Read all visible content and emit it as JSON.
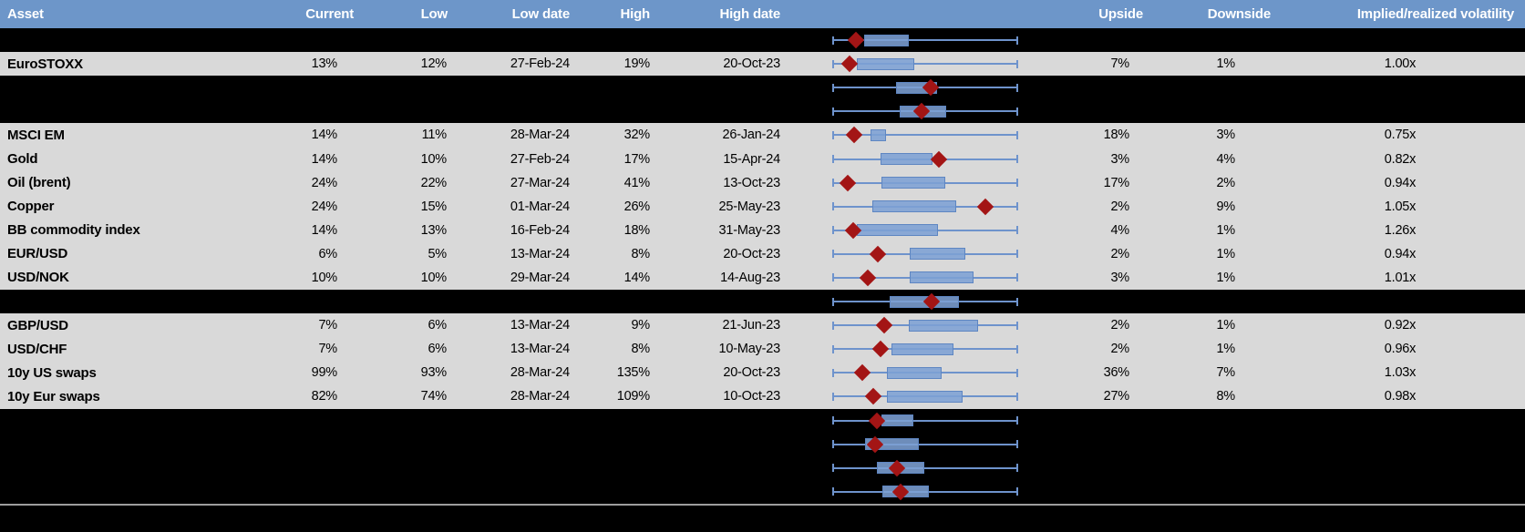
{
  "colors": {
    "header_bg": "#6D96C9",
    "header_text": "#FFFFFF",
    "visible_row_bg": "#D9D9D9",
    "hidden_row_bg": "#000000",
    "whisker_blue": "#6E93CC",
    "box_fill": "#7DA0D4",
    "box_border": "#5E86C2",
    "marker_dark_red": "#A31515",
    "bottom_line_gray": "#9E9E9E",
    "body_text": "#000000"
  },
  "chart_data": {
    "type": "table",
    "subtype": "boxplot-range-per-row",
    "columns": [
      "Asset",
      "Current",
      "Low",
      "Low date",
      "High",
      "High date",
      "",
      "Upside",
      "Downside",
      "Implied/realized volatility"
    ],
    "plot_legend": "whisker = low-high range (normalized 0-1), box = inner range, diamond = current",
    "rows": [
      {
        "hidden": true,
        "asset": "",
        "current": "",
        "low": "",
        "low_date": "",
        "high": "",
        "high_date": "",
        "upside": "",
        "downside": "",
        "implied_realized": "",
        "plot": {
          "whisker": [
            0,
            1
          ],
          "box": [
            0.172,
            0.412
          ],
          "marker": 0.127
        }
      },
      {
        "hidden": false,
        "asset": "EuroSTOXX",
        "current": "13%",
        "low": "12%",
        "low_date": "27-Feb-24",
        "high": "19%",
        "high_date": "20-Oct-23",
        "upside": "7%",
        "downside": "1%",
        "implied_realized": "1.00x",
        "plot": {
          "whisker": [
            0,
            1
          ],
          "box": [
            0.132,
            0.441
          ],
          "marker": 0.093
        }
      },
      {
        "hidden": true,
        "asset": "",
        "current": "",
        "low": "",
        "low_date": "",
        "high": "",
        "high_date": "",
        "upside": "",
        "downside": "",
        "implied_realized": "",
        "plot": {
          "whisker": [
            0,
            1
          ],
          "box": [
            0.343,
            0.564
          ],
          "marker": 0.529
        }
      },
      {
        "hidden": true,
        "asset": "",
        "current": "",
        "low": "",
        "low_date": "",
        "high": "",
        "high_date": "",
        "upside": "",
        "downside": "",
        "implied_realized": "",
        "plot": {
          "whisker": [
            0,
            1
          ],
          "box": [
            0.363,
            0.613
          ],
          "marker": 0.48
        }
      },
      {
        "hidden": false,
        "asset": "MSCI EM",
        "current": "14%",
        "low": "11%",
        "low_date": "28-Mar-24",
        "high": "32%",
        "high_date": "26-Jan-24",
        "upside": "18%",
        "downside": "3%",
        "implied_realized": "0.75x",
        "plot": {
          "whisker": [
            0,
            1
          ],
          "box": [
            0.206,
            0.289
          ],
          "marker": 0.118
        }
      },
      {
        "hidden": false,
        "asset": "Gold",
        "current": "14%",
        "low": "10%",
        "low_date": "27-Feb-24",
        "high": "17%",
        "high_date": "15-Apr-24",
        "upside": "3%",
        "downside": "4%",
        "implied_realized": "0.82x",
        "plot": {
          "whisker": [
            0,
            1
          ],
          "box": [
            0.26,
            0.539
          ],
          "marker": 0.574
        }
      },
      {
        "hidden": false,
        "asset": "Oil (brent)",
        "current": "24%",
        "low": "22%",
        "low_date": "27-Mar-24",
        "high": "41%",
        "high_date": "13-Oct-23",
        "upside": "17%",
        "downside": "2%",
        "implied_realized": "0.94x",
        "plot": {
          "whisker": [
            0,
            1
          ],
          "box": [
            0.265,
            0.608
          ],
          "marker": 0.083
        }
      },
      {
        "hidden": false,
        "asset": "Copper",
        "current": "24%",
        "low": "15%",
        "low_date": "01-Mar-24",
        "high": "26%",
        "high_date": "25-May-23",
        "upside": "2%",
        "downside": "9%",
        "implied_realized": "1.05x",
        "plot": {
          "whisker": [
            0,
            1
          ],
          "box": [
            0.216,
            0.667
          ],
          "marker": 0.824
        }
      },
      {
        "hidden": false,
        "asset": "BB commodity index",
        "current": "14%",
        "low": "13%",
        "low_date": "16-Feb-24",
        "high": "18%",
        "high_date": "31-May-23",
        "upside": "4%",
        "downside": "1%",
        "implied_realized": "1.26x",
        "plot": {
          "whisker": [
            0,
            1
          ],
          "box": [
            0.132,
            0.569
          ],
          "marker": 0.113
        }
      },
      {
        "hidden": false,
        "asset": "EUR/USD",
        "current": "6%",
        "low": "5%",
        "low_date": "13-Mar-24",
        "high": "8%",
        "high_date": "20-Oct-23",
        "upside": "2%",
        "downside": "1%",
        "implied_realized": "0.94x",
        "plot": {
          "whisker": [
            0,
            1
          ],
          "box": [
            0.417,
            0.716
          ],
          "marker": 0.245
        }
      },
      {
        "hidden": false,
        "asset": "USD/NOK",
        "current": "10%",
        "low": "10%",
        "low_date": "29-Mar-24",
        "high": "14%",
        "high_date": "14-Aug-23",
        "upside": "3%",
        "downside": "1%",
        "implied_realized": "1.01x",
        "plot": {
          "whisker": [
            0,
            1
          ],
          "box": [
            0.417,
            0.76
          ],
          "marker": 0.191
        }
      },
      {
        "hidden": true,
        "asset": "",
        "current": "",
        "low": "",
        "low_date": "",
        "high": "",
        "high_date": "",
        "upside": "",
        "downside": "",
        "implied_realized": "",
        "plot": {
          "whisker": [
            0,
            1
          ],
          "box": [
            0.309,
            0.681
          ],
          "marker": 0.534
        }
      },
      {
        "hidden": false,
        "asset": "GBP/USD",
        "current": "7%",
        "low": "6%",
        "low_date": "13-Mar-24",
        "high": "9%",
        "high_date": "21-Jun-23",
        "upside": "2%",
        "downside": "1%",
        "implied_realized": "0.92x",
        "plot": {
          "whisker": [
            0,
            1
          ],
          "box": [
            0.412,
            0.784
          ],
          "marker": 0.279
        }
      },
      {
        "hidden": false,
        "asset": "USD/CHF",
        "current": "7%",
        "low": "6%",
        "low_date": "13-Mar-24",
        "high": "8%",
        "high_date": "10-May-23",
        "upside": "2%",
        "downside": "1%",
        "implied_realized": "0.96x",
        "plot": {
          "whisker": [
            0,
            1
          ],
          "box": [
            0.319,
            0.652
          ],
          "marker": 0.26
        }
      },
      {
        "hidden": false,
        "asset": "10y US swaps",
        "current": "99%",
        "low": "93%",
        "low_date": "28-Mar-24",
        "high": "135%",
        "high_date": "20-Oct-23",
        "upside": "36%",
        "downside": "7%",
        "implied_realized": "1.03x",
        "plot": {
          "whisker": [
            0,
            1
          ],
          "box": [
            0.294,
            0.588
          ],
          "marker": 0.162
        }
      },
      {
        "hidden": false,
        "asset": "10y Eur swaps",
        "current": "82%",
        "low": "74%",
        "low_date": "28-Mar-24",
        "high": "109%",
        "high_date": "10-Oct-23",
        "upside": "27%",
        "downside": "8%",
        "implied_realized": "0.98x",
        "plot": {
          "whisker": [
            0,
            1
          ],
          "box": [
            0.294,
            0.701
          ],
          "marker": 0.221
        }
      },
      {
        "hidden": true,
        "asset": "",
        "current": "",
        "low": "",
        "low_date": "",
        "high": "",
        "high_date": "",
        "upside": "",
        "downside": "",
        "implied_realized": "",
        "plot": {
          "whisker": [
            0,
            1
          ],
          "box": [
            0.265,
            0.436
          ],
          "marker": 0.24
        }
      },
      {
        "hidden": true,
        "asset": "",
        "current": "",
        "low": "",
        "low_date": "",
        "high": "",
        "high_date": "",
        "upside": "",
        "downside": "",
        "implied_realized": "",
        "plot": {
          "whisker": [
            0,
            1
          ],
          "box": [
            0.176,
            0.466
          ],
          "marker": 0.23
        }
      },
      {
        "hidden": true,
        "asset": "",
        "current": "",
        "low": "",
        "low_date": "",
        "high": "",
        "high_date": "",
        "upside": "",
        "downside": "",
        "implied_realized": "",
        "plot": {
          "whisker": [
            0,
            1
          ],
          "box": [
            0.24,
            0.495
          ],
          "marker": 0.348
        }
      },
      {
        "hidden": true,
        "asset": "",
        "current": "",
        "low": "",
        "low_date": "",
        "high": "",
        "high_date": "",
        "upside": "",
        "downside": "",
        "implied_realized": "",
        "plot": {
          "whisker": [
            0,
            1
          ],
          "box": [
            0.27,
            0.52
          ],
          "marker": 0.37
        }
      }
    ]
  }
}
